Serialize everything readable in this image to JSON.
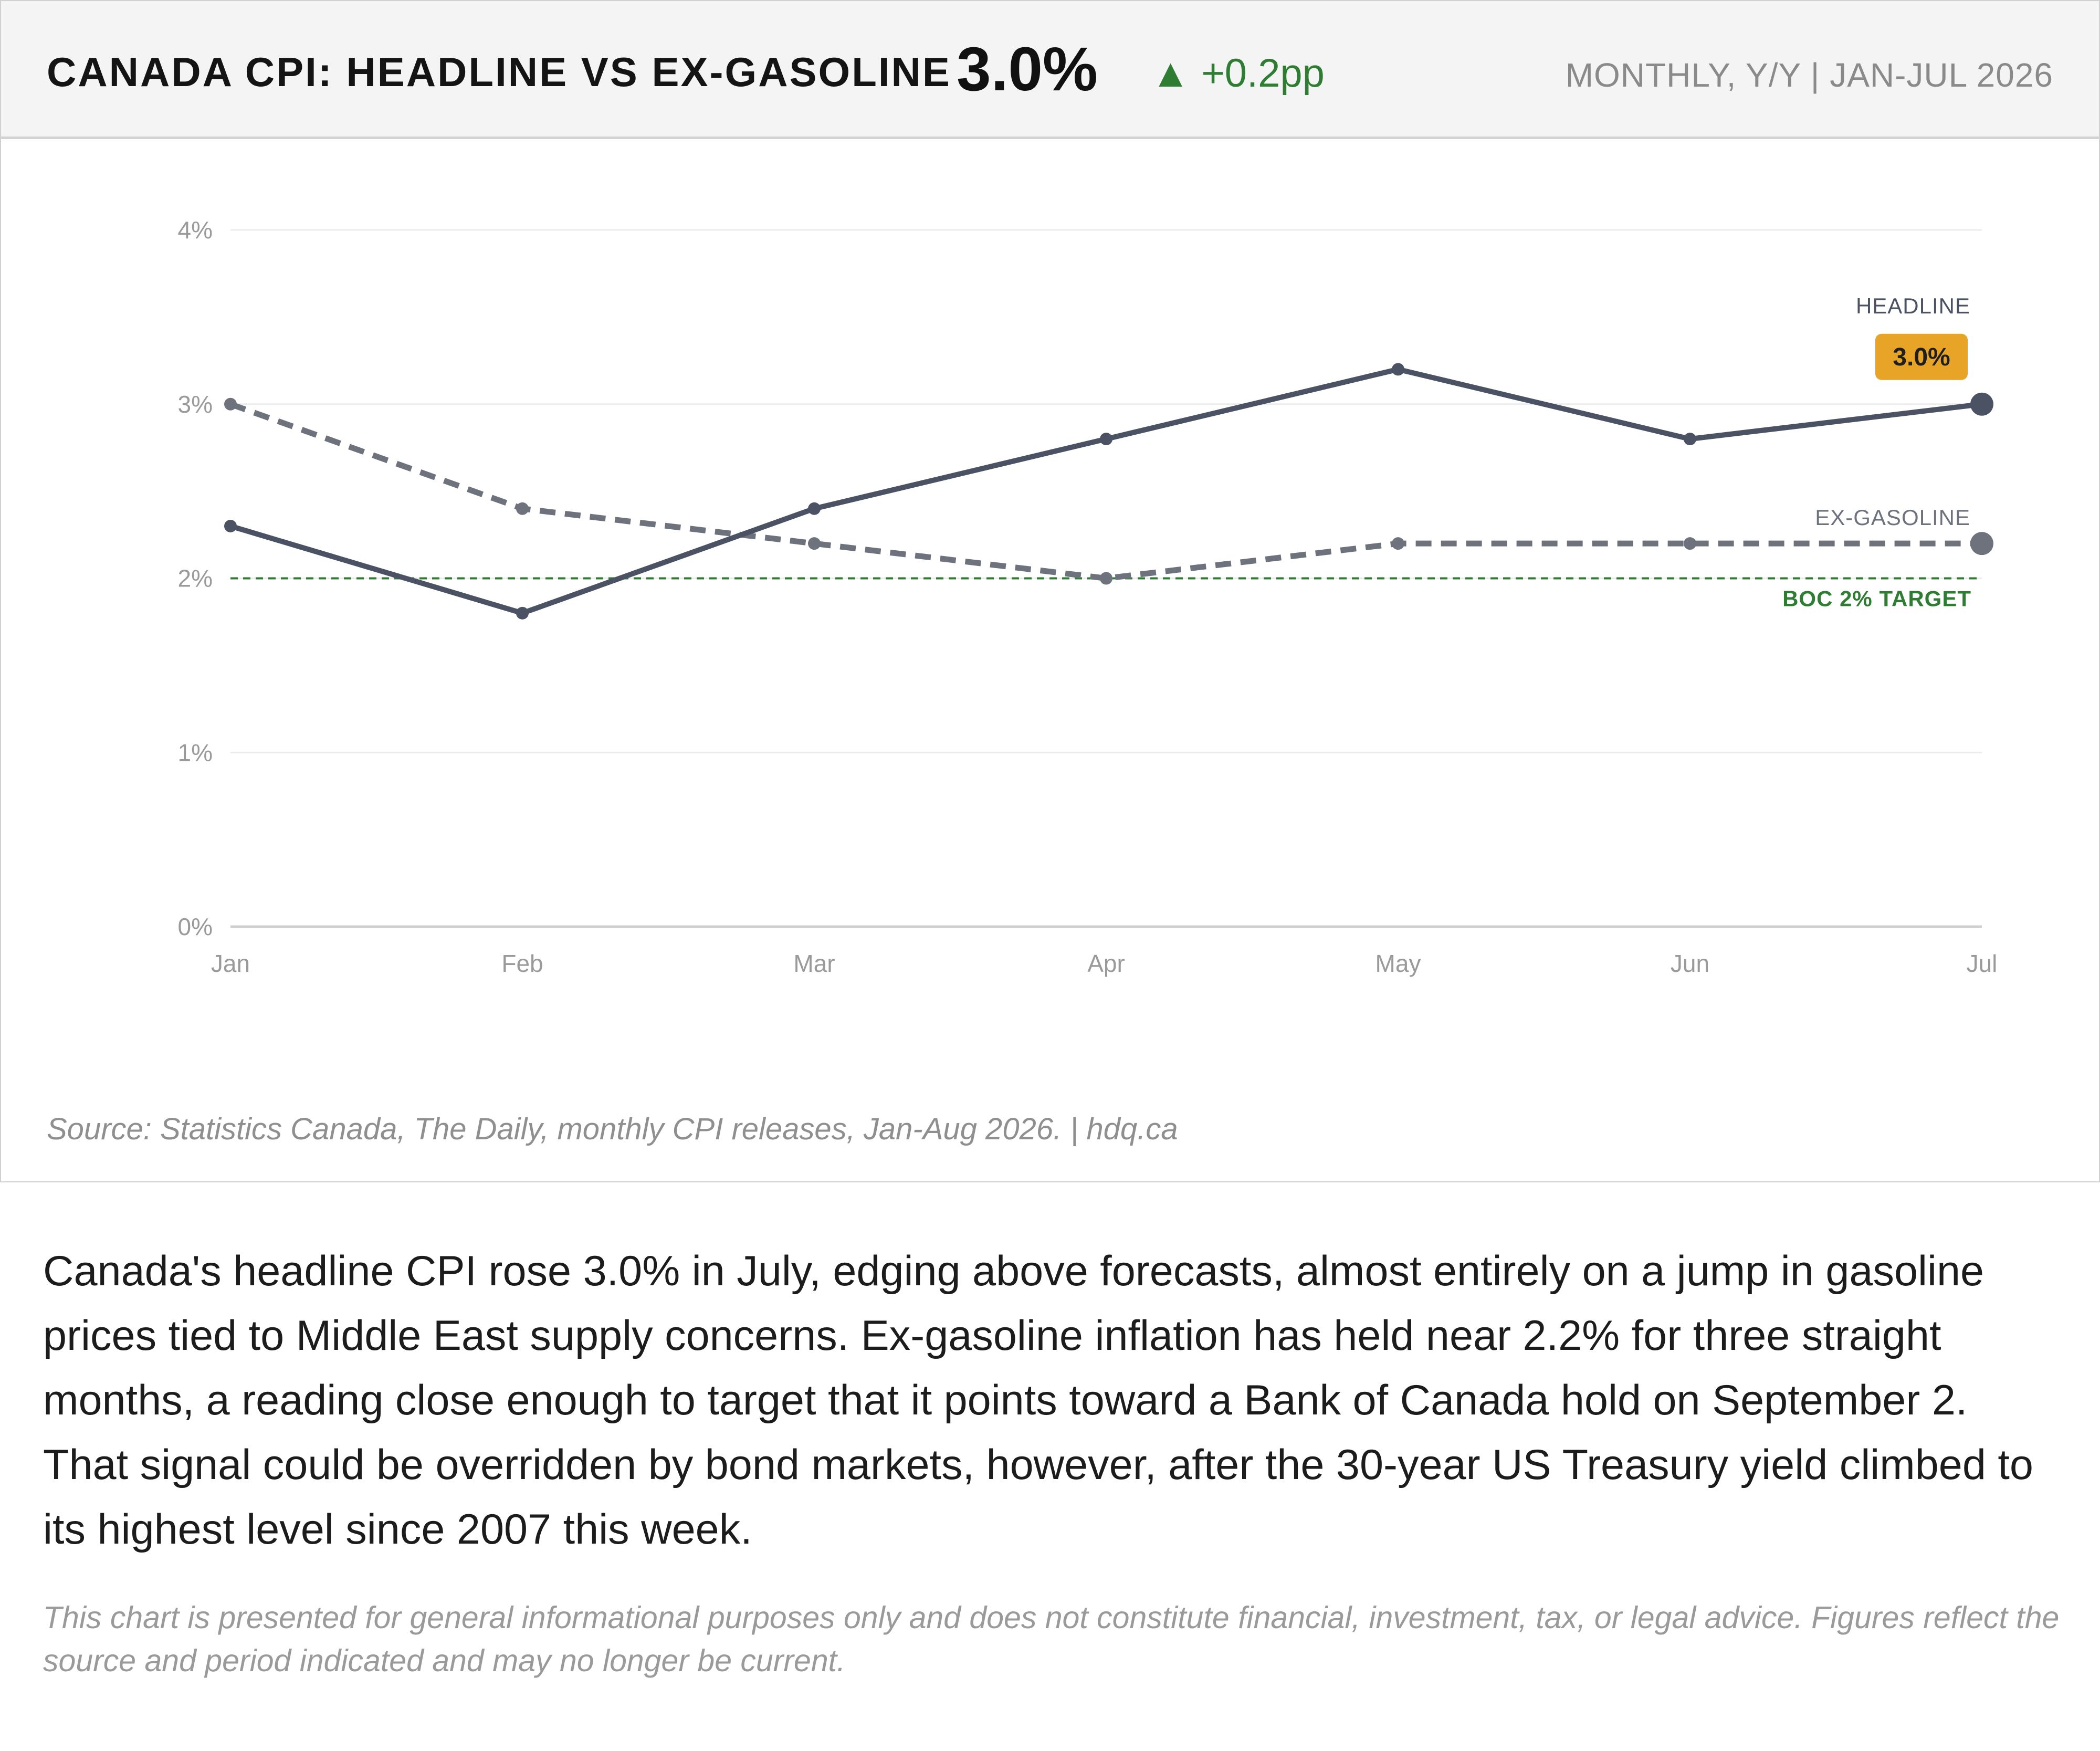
{
  "header": {
    "title": "CANADA CPI: HEADLINE VS EX-GASOLINE",
    "value": "3.0%",
    "change_arrow": "▲",
    "change": "+0.2pp",
    "period": "MONTHLY, Y/Y  |  JAN-JUL 2026"
  },
  "chart_data": {
    "type": "line",
    "categories": [
      "Jan",
      "Feb",
      "Mar",
      "Apr",
      "May",
      "Jun",
      "Jul"
    ],
    "series": [
      {
        "name": "HEADLINE",
        "values": [
          2.3,
          1.8,
          2.4,
          2.8,
          3.2,
          2.8,
          3.0
        ],
        "color": "#4a5263",
        "dashed": false
      },
      {
        "name": "EX-GASOLINE",
        "values": [
          3.0,
          2.4,
          2.2,
          2.0,
          2.2,
          2.2,
          2.2
        ],
        "color": "#6d727d",
        "dashed": true
      }
    ],
    "y_ticks": [
      {
        "value": 0,
        "label": "0%"
      },
      {
        "value": 1,
        "label": "1%"
      },
      {
        "value": 2,
        "label": "2%"
      },
      {
        "value": 3,
        "label": "3%"
      },
      {
        "value": 4,
        "label": "4%"
      }
    ],
    "ylim": [
      0,
      4
    ],
    "grid": true,
    "reference_line": {
      "value": 2,
      "label": "BOC 2% TARGET",
      "color": "#2e7d32"
    },
    "end_badge": {
      "text": "3.0%",
      "color": "#e8a427"
    }
  },
  "source": "Source: Statistics Canada, The Daily, monthly CPI releases, Jan-Aug 2026.  |  hdq.ca",
  "narrative": "Canada's headline CPI rose 3.0% in July, edging above forecasts, almost entirely on a jump in gasoline prices tied to Middle East supply concerns. Ex-gasoline inflation has held near 2.2% for three straight months, a reading close enough to target that it points toward a Bank of Canada hold on September 2. That signal could be overridden by bond markets, however, after the 30-year US Treasury yield climbed to its highest level since 2007 this week.",
  "disclaimer": "This chart is presented for general informational purposes only and does not constitute financial, investment, tax, or legal advice. Figures reflect the source and period indicated and may no longer be current."
}
